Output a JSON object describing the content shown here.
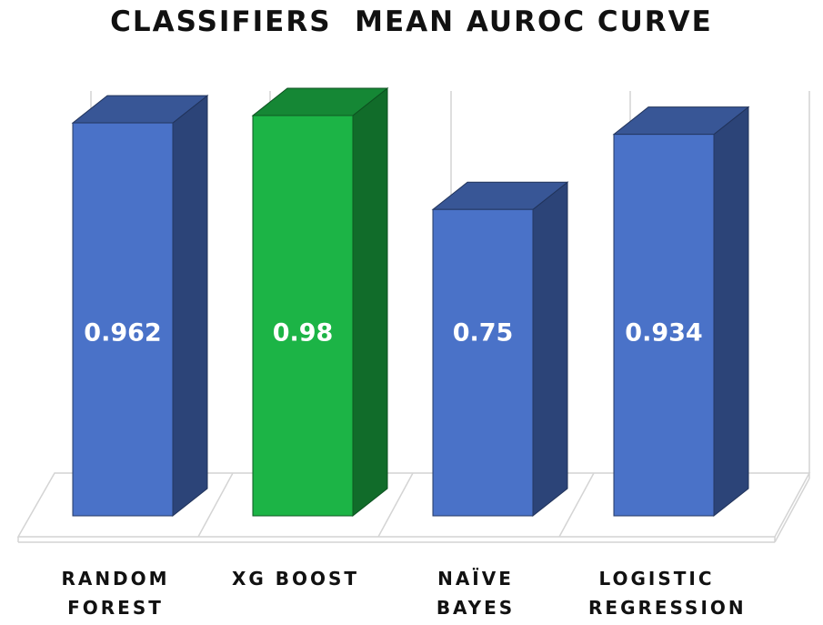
{
  "chart_data": {
    "type": "bar3d",
    "title": "CLASSIFIERS  MEAN AUROC CURVE",
    "categories": [
      "RANDOM FOREST",
      "XG BOOST",
      "NAÏVE BAYES",
      "LOGISTIC REGRESSION"
    ],
    "values": [
      0.962,
      0.98,
      0.75,
      0.934
    ],
    "colors": [
      "#4a72c8",
      "#1cb446",
      "#4a72c8",
      "#4a72c8"
    ]
  }
}
